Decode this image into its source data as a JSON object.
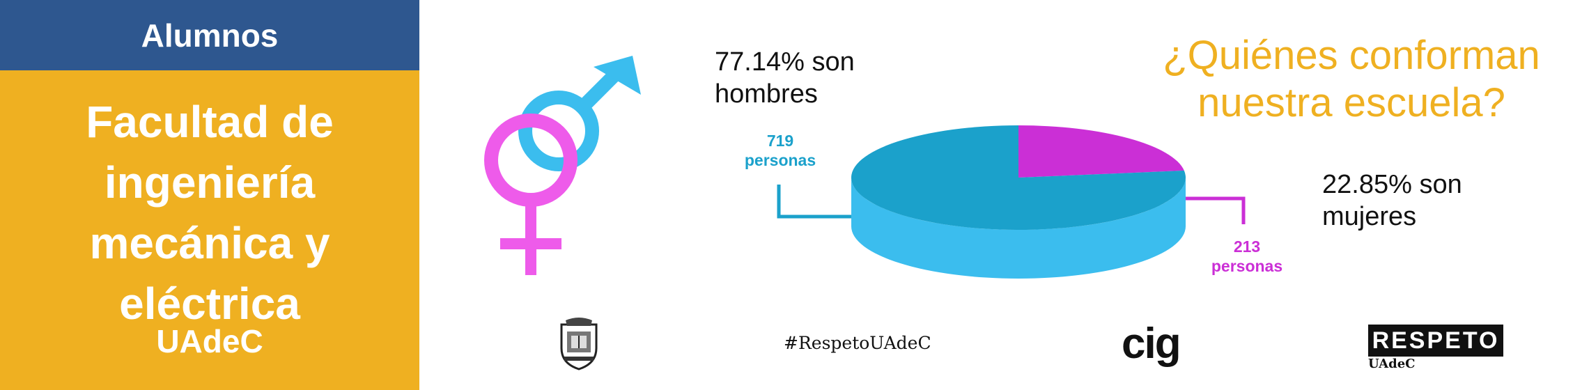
{
  "header": {
    "title": "Alumnos"
  },
  "faculty": {
    "lines": [
      "Facultad de",
      "ingeniería",
      "mecánica y",
      "eléctrica"
    ],
    "university": "UAdeC"
  },
  "stats": {
    "men_line1": "77.14% son",
    "men_line2": "hombres",
    "women_line1": "22.85% son",
    "women_line2": "mujeres",
    "men_count": "719",
    "men_count_unit": "personas",
    "women_count": "213",
    "women_count_unit": "personas"
  },
  "question": {
    "line1": "¿Quiénes conforman",
    "line2": "nuestra escuela?"
  },
  "footer": {
    "hashtag": "#RespetoUAdeC",
    "cig": "cig",
    "respeto": "RESPETO",
    "respeto_sub": "UAdeC"
  },
  "colors": {
    "yellow": "#efb021",
    "navy": "#2e578f",
    "men_blue": "#1ba1cb",
    "men_blue_light": "#3bbdee",
    "women_magenta": "#cb2fd6",
    "venus_pink": "#ee5bea"
  },
  "icons": [
    "mars-icon",
    "venus-icon",
    "crest-icon"
  ],
  "chart_data": {
    "type": "pie",
    "categories": [
      "hombres",
      "mujeres"
    ],
    "values": [
      77.14,
      22.85
    ],
    "counts": [
      719,
      213
    ],
    "colors": [
      "#1ba1cb",
      "#cb2fd6"
    ],
    "title": "¿Quiénes conforman nuestra escuela?"
  }
}
